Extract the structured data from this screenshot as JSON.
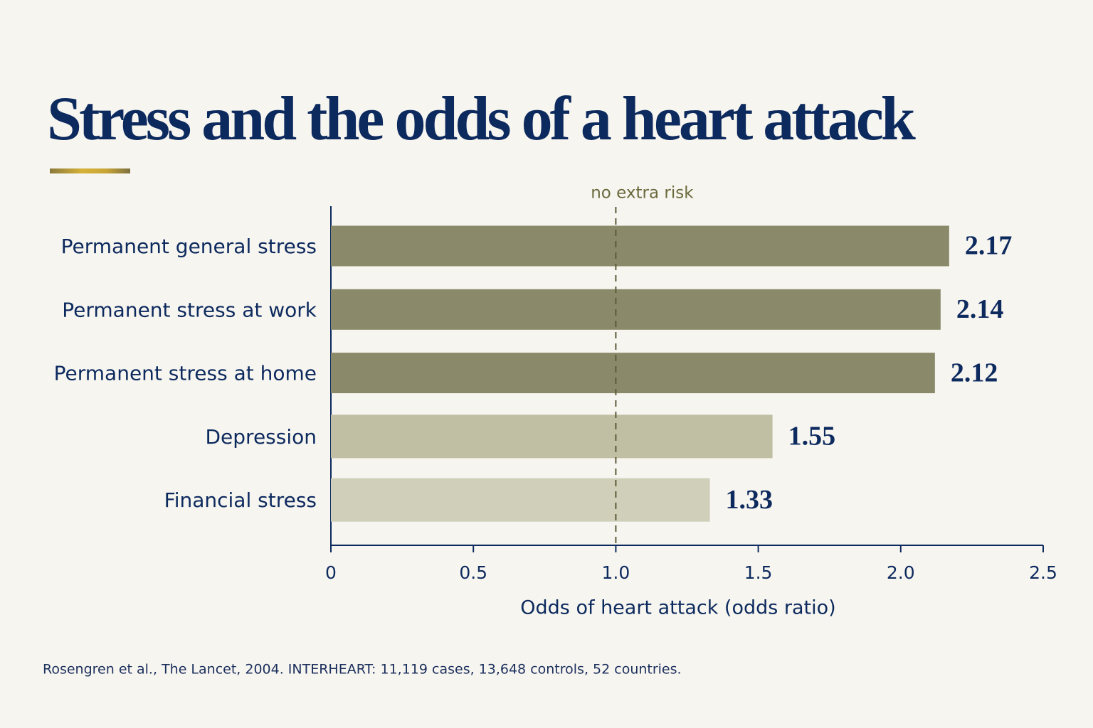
{
  "chart_data": {
    "type": "bar",
    "orientation": "horizontal",
    "title": "Stress and the odds of a heart attack",
    "categories": [
      "Permanent general stress",
      "Permanent stress at work",
      "Permanent stress at home",
      "Depression",
      "Financial stress"
    ],
    "values": [
      2.17,
      2.14,
      2.12,
      1.55,
      1.33
    ],
    "colors": [
      "#8a8a6a",
      "#8a8a6a",
      "#8a8a6a",
      "#c0bfa3",
      "#d0cfb9"
    ],
    "xlim": [
      0,
      2.5
    ],
    "xticks": [
      0,
      0.5,
      {
        "value": 1,
        "label": "1.0"
      },
      1.5,
      {
        "value": 2,
        "label": "2.0"
      },
      2.5
    ],
    "xlabel": "Odds of heart attack (odds ratio)",
    "reference_line": {
      "value": 1,
      "label": "no extra risk"
    },
    "source": "Rosengren et al., The Lancet, 2004. INTERHEART: 11,119 cases, 13,648 controls, 52 countries."
  }
}
